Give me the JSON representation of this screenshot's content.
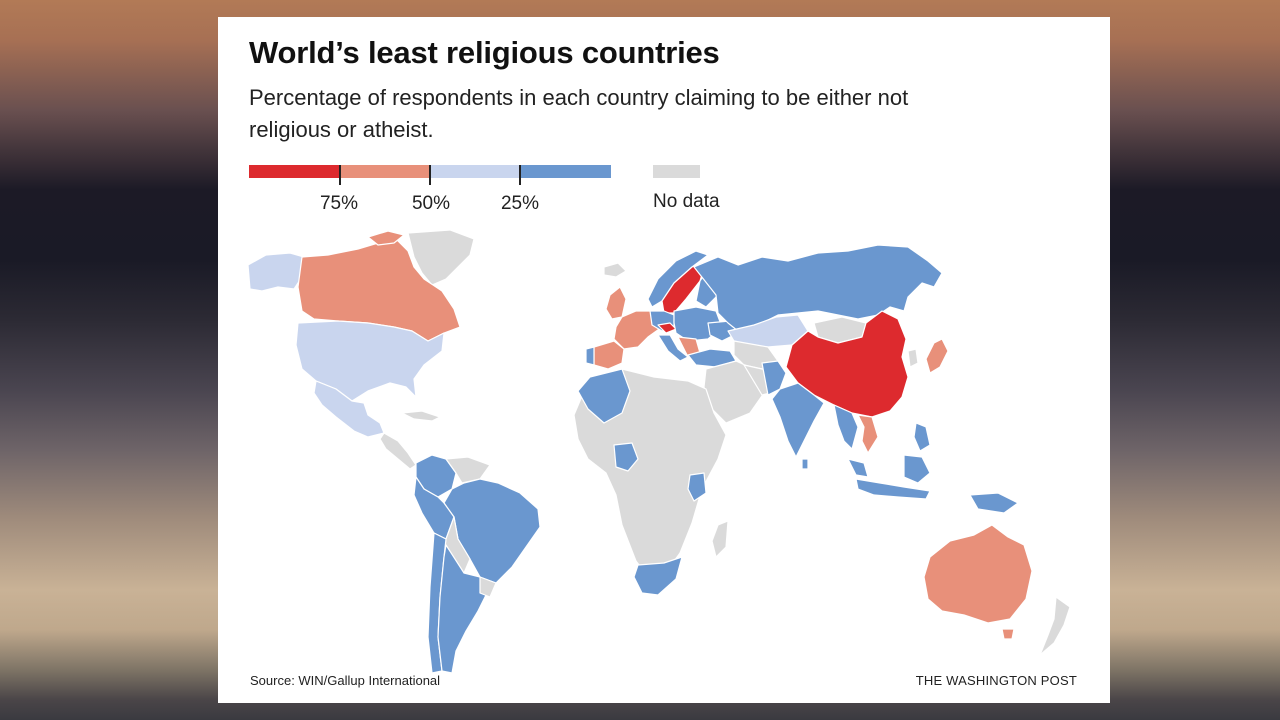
{
  "title": "World’s least religious countries",
  "subtitle": "Percentage of respondents in each country claiming to be either not religious or atheist.",
  "legend": {
    "tick_labels": [
      "75%",
      "50%",
      "25%"
    ],
    "no_data_label": "No data",
    "colors": {
      "over_75": "#dd2a2e",
      "50_to_75": "#e8907a",
      "25_to_50": "#c9d5ee",
      "under_25": "#6a97cf",
      "no_data": "#dadada"
    }
  },
  "source": "Source: WIN/Gallup International",
  "credit": "THE WASHINGTON POST",
  "chart_data": {
    "type": "choropleth",
    "title": "World’s least religious countries",
    "subtitle": "Percentage of respondents in each country claiming to be either not religious or atheist.",
    "bins": [
      {
        "range": "above 75%",
        "color": "#dd2a2e"
      },
      {
        "range": "50%–75%",
        "color": "#e8907a"
      },
      {
        "range": "25%–50%",
        "color": "#c9d5ee"
      },
      {
        "range": "below 25%",
        "color": "#6a97cf"
      },
      {
        "range": "No data",
        "color": "#dadada"
      }
    ],
    "regions": [
      {
        "region": "china",
        "bin": "above 75%"
      },
      {
        "region": "sweden",
        "bin": "above 75%"
      },
      {
        "region": "czech-republic",
        "bin": "above 75%"
      },
      {
        "region": "canada",
        "bin": "50%–75%"
      },
      {
        "region": "australia",
        "bin": "50%–75%"
      },
      {
        "region": "japan",
        "bin": "50%–75%"
      },
      {
        "region": "vietnam",
        "bin": "50%–75%"
      },
      {
        "region": "western-europe",
        "bin": "50%–75%"
      },
      {
        "region": "united-states",
        "bin": "25%–50%"
      },
      {
        "region": "mexico",
        "bin": "25%–50%"
      },
      {
        "region": "kazakhstan",
        "bin": "25%–50%"
      },
      {
        "region": "russia",
        "bin": "below 25%"
      },
      {
        "region": "brazil",
        "bin": "below 25%"
      },
      {
        "region": "argentina",
        "bin": "below 25%"
      },
      {
        "region": "india",
        "bin": "below 25%"
      },
      {
        "region": "south-africa",
        "bin": "below 25%"
      },
      {
        "region": "nigeria",
        "bin": "below 25%"
      },
      {
        "region": "morocco",
        "bin": "below 25%"
      },
      {
        "region": "kenya",
        "bin": "below 25%"
      },
      {
        "region": "indonesia",
        "bin": "below 25%"
      },
      {
        "region": "greenland",
        "bin": "No data"
      },
      {
        "region": "rest-of-africa",
        "bin": "No data"
      }
    ]
  }
}
